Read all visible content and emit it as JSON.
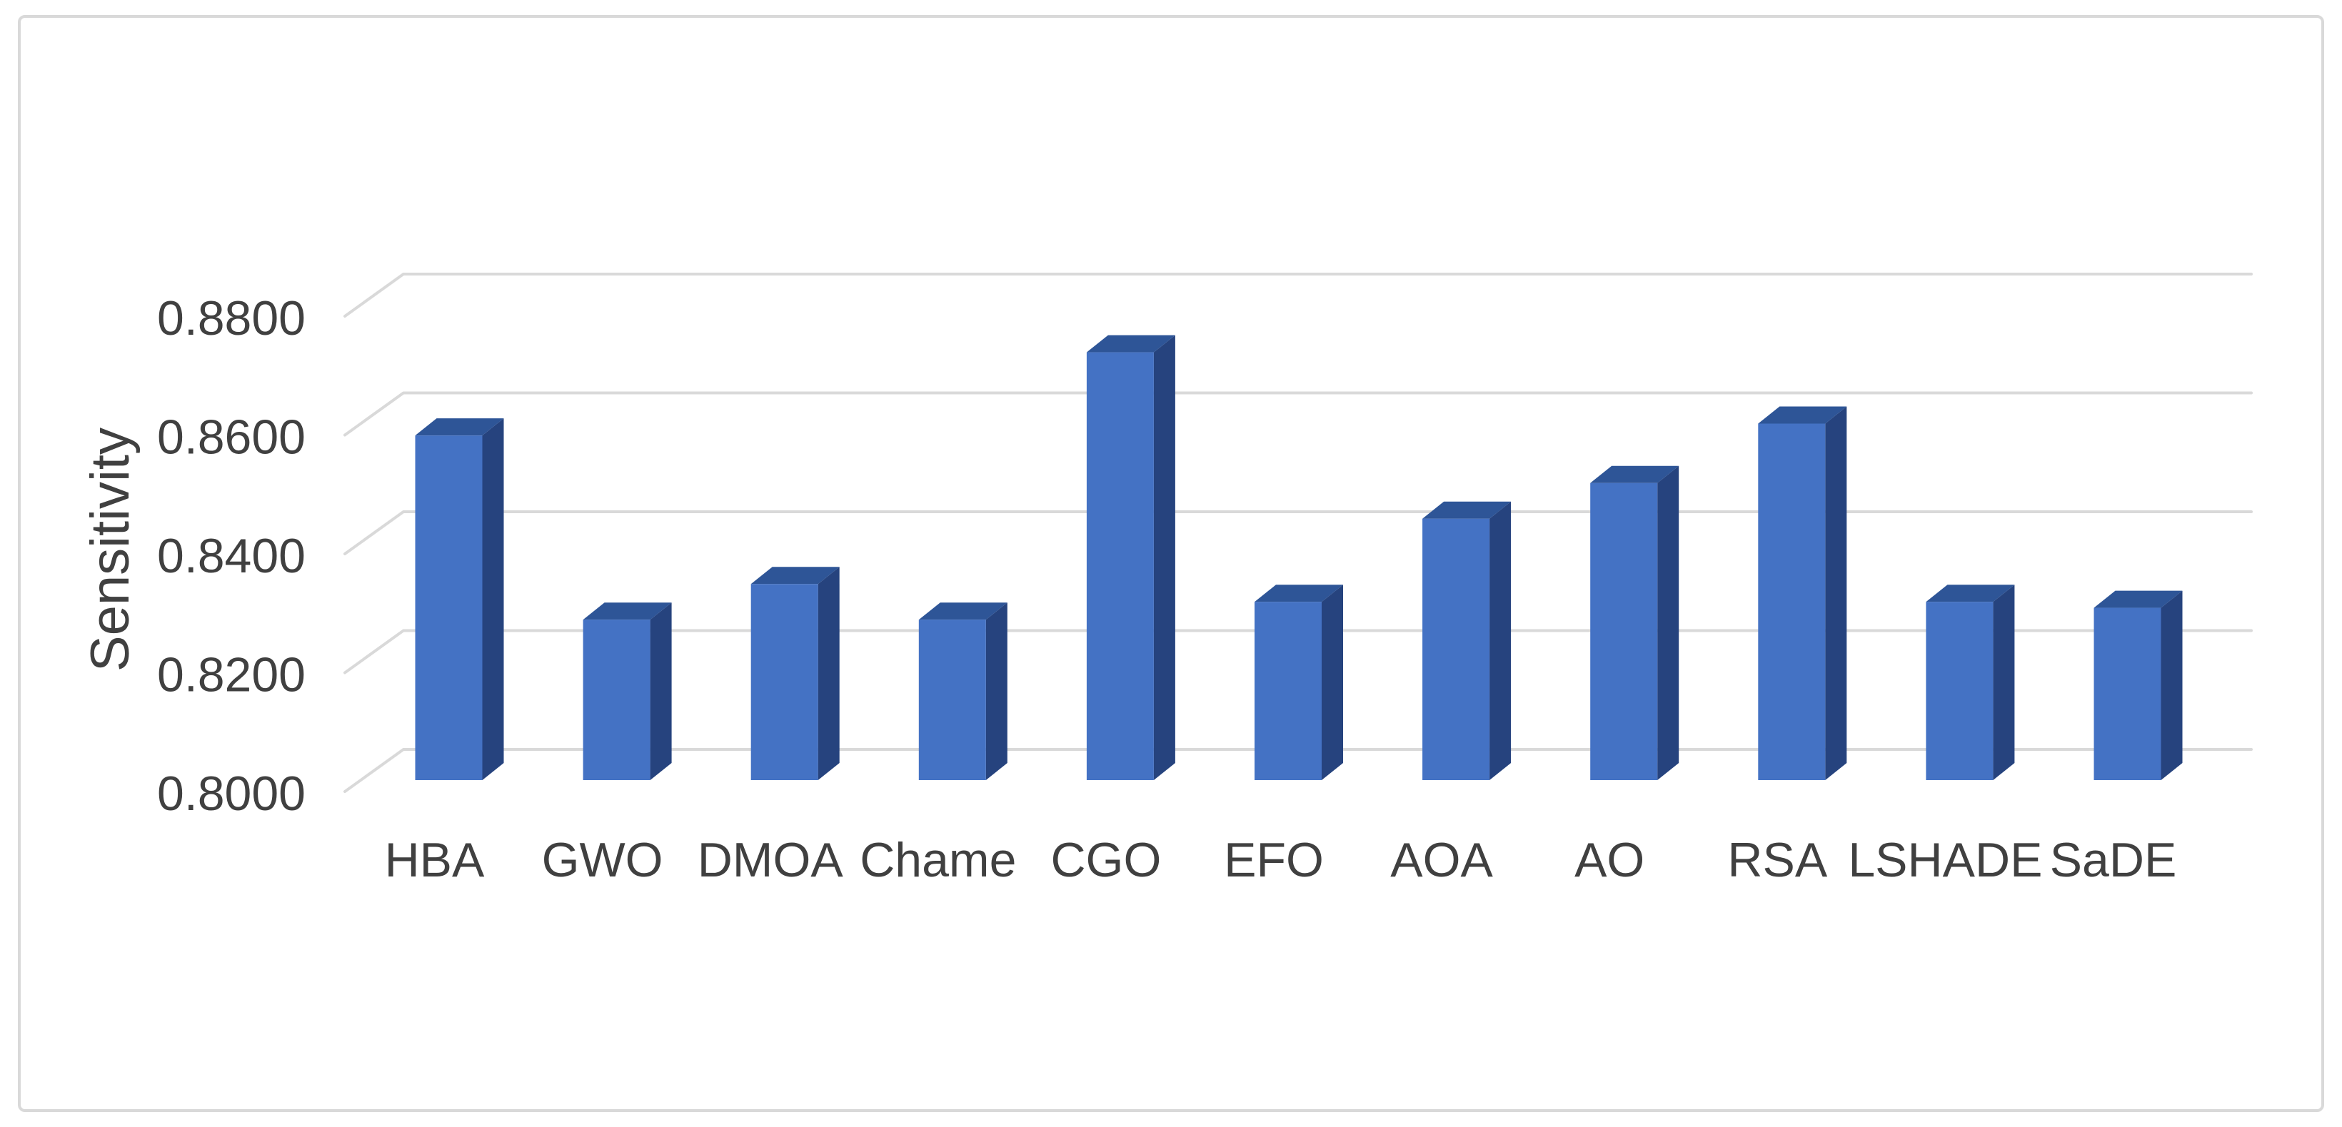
{
  "figure": {
    "background": "#FFFFFF",
    "border_color": "#D9D9D9"
  },
  "chart_data": {
    "type": "bar",
    "style": "3d-clustered-column",
    "title": "",
    "xlabel": "",
    "ylabel": "Sensitivity",
    "categories": [
      "HBA",
      "GWO",
      "DMOA",
      "Chame",
      "CGO",
      "EFO",
      "AOA",
      "AO",
      "RSA",
      "LSHADE",
      "SaDE"
    ],
    "series": [
      {
        "name": "Sensitivity",
        "values": [
          0.858,
          0.827,
          0.833,
          0.827,
          0.872,
          0.83,
          0.844,
          0.85,
          0.86,
          0.83,
          0.829
        ]
      }
    ],
    "ylim": [
      0.8,
      0.88
    ],
    "ytick_step": 0.02,
    "ytick_labels": [
      "0.8000",
      "0.8200",
      "0.8400",
      "0.8600",
      "0.8800"
    ],
    "grid": true,
    "legend": false,
    "colors": {
      "bar_front": "#4472C4",
      "bar_top": "#2E5597",
      "bar_side": "#26437E",
      "gridline": "#D9D9D9",
      "text": "#404040"
    }
  }
}
